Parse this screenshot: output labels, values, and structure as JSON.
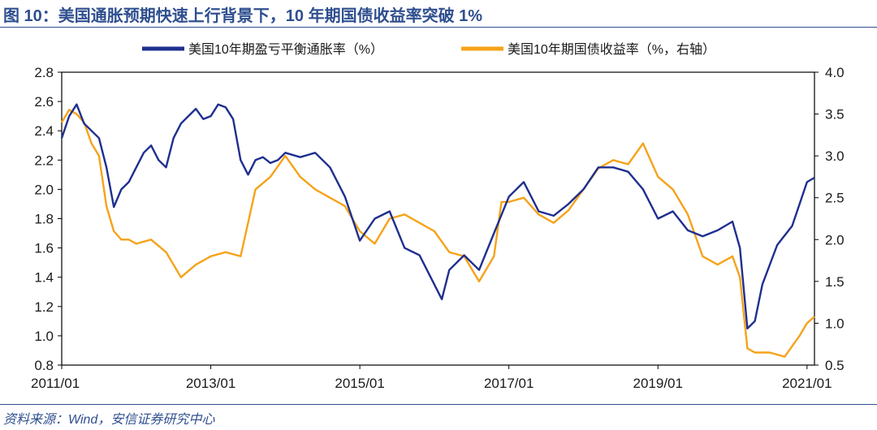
{
  "figure": {
    "title": "图 10：美国通胀预期快速上行背景下，10 年期国债收益率突破 1%",
    "source": "资料来源：Wind，安信证券研究中心"
  },
  "colors": {
    "series1": "#1f2f8f",
    "series2": "#f5a31a",
    "title": "#2f4f8f",
    "axis": "#000000"
  },
  "chart_data": {
    "type": "line",
    "title": "美国通胀预期快速上行背景下，10 年期国债收益率突破 1%",
    "x_tick_labels": [
      "2011/01",
      "2013/01",
      "2015/01",
      "2017/01",
      "2019/01",
      "2021/01"
    ],
    "x_tick_years": [
      2011,
      2013,
      2015,
      2017,
      2019,
      2021
    ],
    "xlim": [
      2011.0,
      2021.1
    ],
    "y_left": {
      "lim": [
        0.8,
        2.8
      ],
      "ticks": [
        "0.8",
        "1.0",
        "1.2",
        "1.4",
        "1.6",
        "1.8",
        "2.0",
        "2.2",
        "2.4",
        "2.6",
        "2.8"
      ]
    },
    "y_right": {
      "lim": [
        0.5,
        4.0
      ],
      "ticks": [
        "0.5",
        "1.0",
        "1.5",
        "2.0",
        "2.5",
        "3.0",
        "3.5",
        "4.0"
      ]
    },
    "legend": {
      "placement": "top"
    },
    "series": [
      {
        "name": "美国10年期盈亏平衡通胀率（%）",
        "axis": "left",
        "x": [
          2011.0,
          2011.1,
          2011.2,
          2011.3,
          2011.4,
          2011.5,
          2011.6,
          2011.7,
          2011.8,
          2011.9,
          2012.0,
          2012.1,
          2012.2,
          2012.3,
          2012.4,
          2012.5,
          2012.6,
          2012.7,
          2012.8,
          2012.9,
          2013.0,
          2013.1,
          2013.2,
          2013.3,
          2013.4,
          2013.5,
          2013.6,
          2013.7,
          2013.8,
          2013.9,
          2014.0,
          2014.2,
          2014.4,
          2014.6,
          2014.8,
          2015.0,
          2015.2,
          2015.4,
          2015.6,
          2015.8,
          2016.0,
          2016.1,
          2016.2,
          2016.4,
          2016.6,
          2016.8,
          2017.0,
          2017.2,
          2017.4,
          2017.6,
          2017.8,
          2018.0,
          2018.2,
          2018.4,
          2018.6,
          2018.8,
          2019.0,
          2019.2,
          2019.4,
          2019.6,
          2019.8,
          2020.0,
          2020.1,
          2020.2,
          2020.3,
          2020.4,
          2020.6,
          2020.8,
          2021.0,
          2021.1
        ],
        "values": [
          2.35,
          2.5,
          2.58,
          2.45,
          2.4,
          2.35,
          2.15,
          1.88,
          2.0,
          2.05,
          2.15,
          2.25,
          2.3,
          2.2,
          2.15,
          2.35,
          2.45,
          2.5,
          2.55,
          2.48,
          2.5,
          2.58,
          2.56,
          2.48,
          2.2,
          2.1,
          2.2,
          2.22,
          2.18,
          2.2,
          2.25,
          2.22,
          2.25,
          2.15,
          1.95,
          1.65,
          1.8,
          1.85,
          1.6,
          1.55,
          1.35,
          1.25,
          1.45,
          1.55,
          1.45,
          1.7,
          1.95,
          2.05,
          1.85,
          1.82,
          1.9,
          2.0,
          2.15,
          2.15,
          2.12,
          2.0,
          1.8,
          1.85,
          1.72,
          1.68,
          1.72,
          1.78,
          1.6,
          1.05,
          1.1,
          1.35,
          1.62,
          1.75,
          2.05,
          2.08
        ]
      },
      {
        "name": "美国10年期国债收益率（%，右轴）",
        "axis": "right",
        "x": [
          2011.0,
          2011.1,
          2011.2,
          2011.3,
          2011.4,
          2011.5,
          2011.6,
          2011.7,
          2011.8,
          2011.9,
          2012.0,
          2012.2,
          2012.4,
          2012.6,
          2012.8,
          2013.0,
          2013.2,
          2013.4,
          2013.5,
          2013.6,
          2013.8,
          2014.0,
          2014.2,
          2014.4,
          2014.6,
          2014.8,
          2015.0,
          2015.2,
          2015.4,
          2015.6,
          2015.8,
          2016.0,
          2016.2,
          2016.4,
          2016.6,
          2016.8,
          2016.9,
          2017.0,
          2017.2,
          2017.4,
          2017.6,
          2017.8,
          2018.0,
          2018.2,
          2018.4,
          2018.6,
          2018.8,
          2019.0,
          2019.2,
          2019.4,
          2019.6,
          2019.8,
          2020.0,
          2020.1,
          2020.2,
          2020.3,
          2020.5,
          2020.7,
          2020.9,
          2021.0,
          2021.1
        ],
        "values": [
          3.4,
          3.55,
          3.5,
          3.4,
          3.15,
          3.0,
          2.4,
          2.1,
          2.0,
          2.0,
          1.95,
          2.0,
          1.85,
          1.55,
          1.7,
          1.8,
          1.85,
          1.8,
          2.2,
          2.6,
          2.75,
          3.0,
          2.75,
          2.6,
          2.5,
          2.4,
          2.1,
          1.95,
          2.25,
          2.3,
          2.2,
          2.1,
          1.85,
          1.8,
          1.5,
          1.8,
          2.45,
          2.45,
          2.5,
          2.3,
          2.2,
          2.35,
          2.6,
          2.85,
          2.95,
          2.9,
          3.15,
          2.75,
          2.6,
          2.3,
          1.8,
          1.7,
          1.8,
          1.55,
          0.7,
          0.65,
          0.65,
          0.6,
          0.85,
          1.0,
          1.08
        ]
      }
    ]
  }
}
